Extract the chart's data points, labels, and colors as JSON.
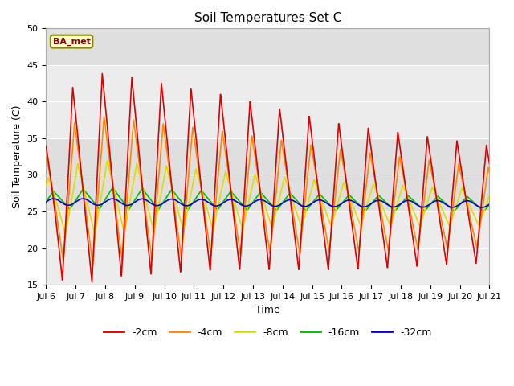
{
  "title": "Soil Temperatures Set C",
  "xlabel": "Time",
  "ylabel": "Soil Temperature (C)",
  "ylim": [
    15,
    50
  ],
  "xlim_days": [
    0,
    15
  ],
  "annotation": "BA_met",
  "legend_labels": [
    "-2cm",
    "-4cm",
    "-8cm",
    "-16cm",
    "-32cm"
  ],
  "legend_colors": [
    "#dd0000",
    "#ff8800",
    "#dddd00",
    "#00bb00",
    "#0000cc"
  ],
  "x_tick_labels": [
    "Jul 6",
    "Jul 7",
    "Jul 8",
    "Jul 9",
    "Jul 10",
    "Jul 11",
    "Jul 12",
    "Jul 13",
    "Jul 14",
    "Jul 15",
    "Jul 16",
    "Jul 17",
    "Jul 18",
    "Jul 19",
    "Jul 20",
    "Jul 21"
  ],
  "bg_color": "#e8e8e8",
  "title_fontsize": 11,
  "axis_label_fontsize": 9,
  "tick_fontsize": 8
}
